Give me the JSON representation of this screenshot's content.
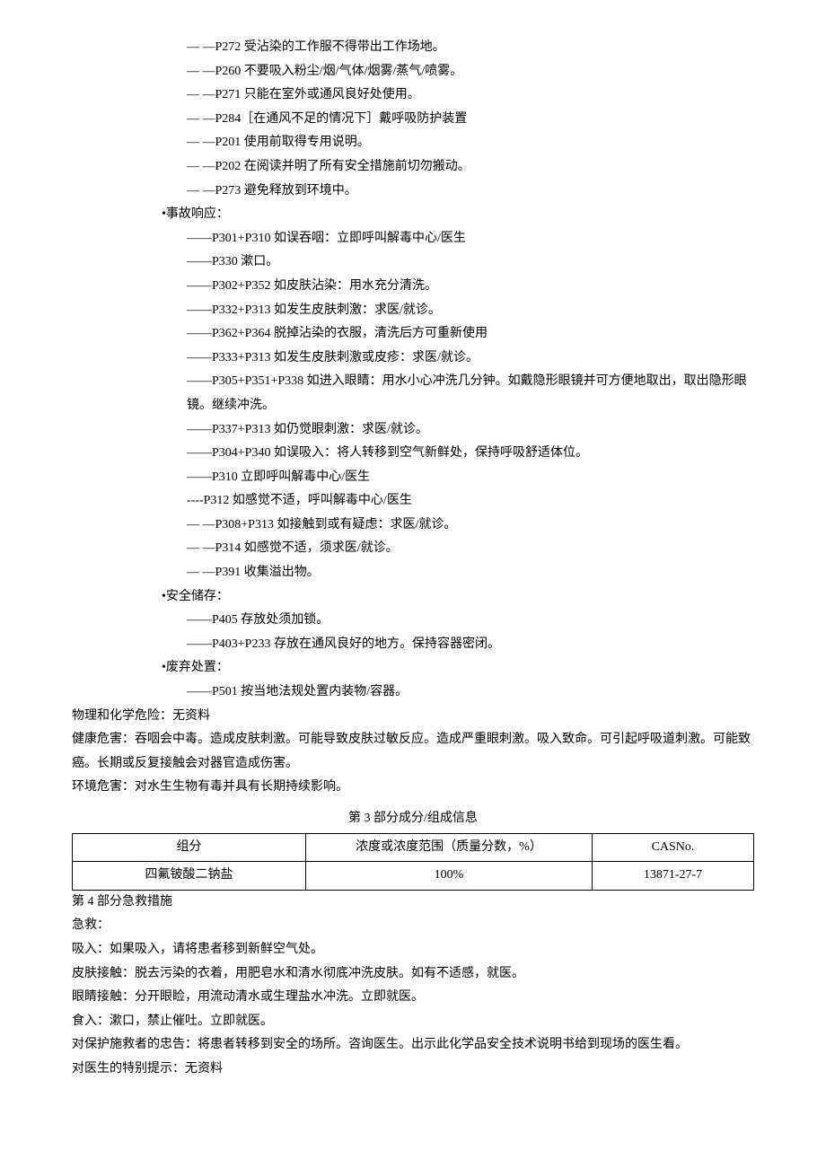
{
  "prevention": [
    "—    —P272 受沾染的工作服不得带出工作场地。",
    "—    —P260 不要吸入粉尘/烟/气体/烟雾/蒸气/喷雾。",
    "—    —P271 只能在室外或通风良好处使用。",
    "—    —P284［在通风不足的情况下］戴呼吸防护装置",
    "—    —P201 使用前取得专用说明。",
    "—    —P202 在阅读并明了所有安全措施前切勿搬动。",
    "—    —P273 避免释放到环境中。"
  ],
  "response_label": "•事故响应：",
  "response": [
    "——P301+P310 如误吞咽：立即呼叫解毒中心/医生",
    "——P330 漱口。",
    "——P302+P352 如皮肤沾染：用水充分清洗。",
    "——P332+P313 如发生皮肤刺激：求医/就诊。",
    "——P362+P364 脱掉沾染的衣服，清洗后方可重新使用",
    "——P333+P313 如发生皮肤刺激或皮疹：求医/就诊。",
    "——P305+P351+P338 如进入眼睛：用水小心冲洗几分钟。如戴隐形眼镜并可方便地取出，取出隐形眼镜。继续冲洗。",
    "——P337+P313 如仍觉眼刺激：求医/就诊。",
    "——P304+P340 如误吸入：将人转移到空气新鲜处，保持呼吸舒适体位。",
    "——P310 立即呼叫解毒中心/医生",
    "----P312 如感觉不适，呼叫解毒中心/医生",
    "—    —P308+P313 如接触到或有疑虑：求医/就诊。",
    "—    —P314 如感觉不适，须求医/就诊。",
    "—    —P391 收集溢出物。"
  ],
  "storage_label": "•安全储存：",
  "storage": [
    "——P405 存放处须加锁。",
    "——P403+P233 存放在通风良好的地方。保持容器密闭。"
  ],
  "disposal_label": "•废弃处置：",
  "disposal": [
    "——P501 按当地法规处置内装物/容器。"
  ],
  "physical_hazard": "物理和化学危险：无资料",
  "health_hazard": "健康危害：吞咽会中毒。造成皮肤刺激。可能导致皮肤过敏反应。造成严重眼刺激。吸入致命。可引起呼吸道刺激。可能致癌。长期或反复接触会对器官造成伤害。",
  "env_hazard": "环境危害：对水生生物有毒并具有长期持续影响。",
  "section3_title": "第 3 部分成分/组成信息",
  "table": {
    "headers": [
      "组分",
      "浓度或浓度范围（质量分数，%）",
      "CASNo."
    ],
    "row": [
      "四氟铍酸二钠盐",
      "100%",
      "13871-27-7"
    ]
  },
  "section4_title": "第 4 部分急救措施",
  "first_aid": [
    "急救：",
    "吸入：如果吸入，请将患者移到新鲜空气处。",
    "皮肤接触：脱去污染的衣着，用肥皂水和清水彻底冲洗皮肤。如有不适感，就医。",
    "眼睛接触：分开眼睑，用流动清水或生理盐水冲洗。立即就医。",
    "食入：漱口，禁止催吐。立即就医。",
    "对保护施救者的忠告：将患者转移到安全的场所。咨询医生。出示此化学品安全技术说明书给到现场的医生看。",
    "对医生的特别提示：无资料"
  ]
}
